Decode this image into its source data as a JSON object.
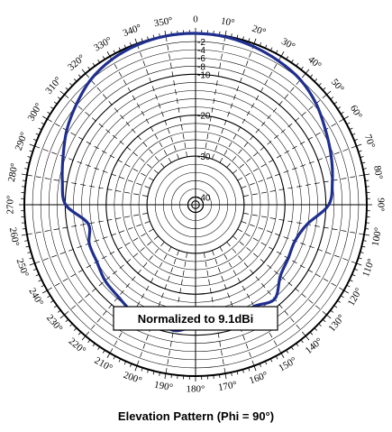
{
  "caption": "Elevation Pattern (Phi = 90°)",
  "annotation": "Normalized to 9.1dBi",
  "chart_data": {
    "type": "polar-line",
    "title": "Elevation Pattern (Phi = 90°)",
    "annotation": "Normalized to 9.1dBi",
    "angle_unit": "deg",
    "angle_direction": "clockwise",
    "zero_direction": "top",
    "angle_labels": [
      "0",
      "10°",
      "20°",
      "30°",
      "40°",
      "50°",
      "60°",
      "70°",
      "80°",
      "90°",
      "100°",
      "110°",
      "120°",
      "130°",
      "140°",
      "150°",
      "160°",
      "170°",
      "180°",
      "190°",
      "200°",
      "210°",
      "220°",
      "230°",
      "240°",
      "250°",
      "260°",
      "270°",
      "280°",
      "290°",
      "300°",
      "310°",
      "320°",
      "330°",
      "340°",
      "350°"
    ],
    "radial_unit": "dB",
    "radial_range": [
      -40,
      0
    ],
    "radial_tick_labels": [
      "0",
      "-2",
      "-4",
      "-6",
      "-8",
      "-10",
      "-20",
      "-30",
      "-40"
    ],
    "series": [
      {
        "color": "#1f2f8f",
        "angles": [
          0,
          10,
          20,
          30,
          40,
          50,
          60,
          70,
          80,
          90,
          100,
          110,
          120,
          130,
          140,
          150,
          160,
          170,
          180,
          190,
          200,
          210,
          220,
          230,
          240,
          250,
          260,
          270,
          280,
          290,
          300,
          310,
          320,
          330,
          340,
          350
        ],
        "values": [
          0,
          -0.2,
          -0.7,
          -1.3,
          -2,
          -3.4,
          -5.2,
          -6.6,
          -7.9,
          -9.3,
          -14.2,
          -16,
          -15.7,
          -14.8,
          -11.8,
          -13.2,
          -12.7,
          -12.4,
          -12.1,
          -10.7,
          -12.2,
          -11.5,
          -12.5,
          -13,
          -14,
          -14.2,
          -15.2,
          -10.1,
          -8.8,
          -7.4,
          -5.5,
          -3.8,
          -2,
          -0.9,
          -0.3,
          0
        ]
      }
    ]
  }
}
